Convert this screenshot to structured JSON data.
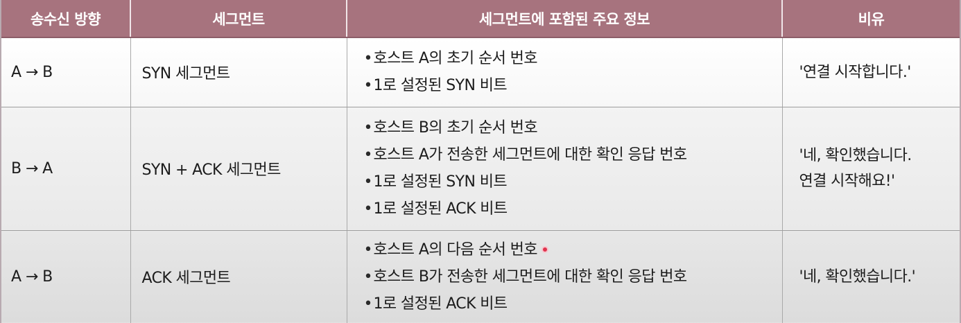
{
  "table": {
    "headers": [
      "송수신 방향",
      "세그먼트",
      "세그먼트에 포함된 주요 정보",
      "비유"
    ],
    "rows": [
      {
        "direction": "A → B",
        "segment": "SYN 세그먼트",
        "info": [
          "호스트 A의 초기 순서 번호",
          "1로 설정된 SYN 비트"
        ],
        "reason": [
          "'연결 시작합니다.'"
        ]
      },
      {
        "direction": "B → A",
        "segment": "SYN + ACK 세그먼트",
        "info": [
          "호스트 B의 초기 순서 번호",
          "호스트 A가 전송한 세그먼트에 대한 확인 응답 번호",
          "1로 설정된 SYN 비트",
          "1로 설정된 ACK 비트"
        ],
        "reason": [
          "'네, 확인했습니다.",
          "연결 시작해요!'"
        ]
      },
      {
        "direction": "A → B",
        "segment": "ACK 세그먼트",
        "info": [
          "호스트 A의 다음 순서 번호",
          "호스트 B가 전송한 세그먼트에 대한 확인 응답 번호",
          "1로 설정된 ACK 비트"
        ],
        "reason": [
          "'네, 확인했습니다.'"
        ]
      }
    ]
  },
  "bullet_symbol": "•",
  "colors": {
    "header_bg": "#a7737e",
    "header_text": "#ffffff",
    "cursor_dot": "#e0334d"
  }
}
